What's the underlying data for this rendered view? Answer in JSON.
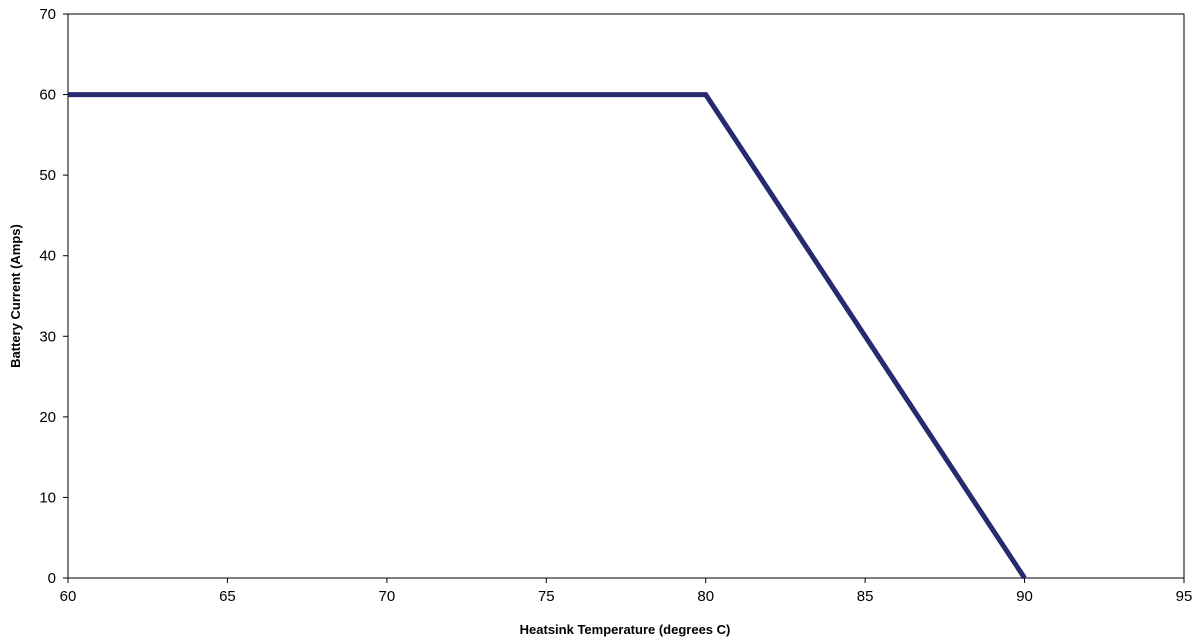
{
  "chart_data": {
    "type": "line",
    "title": "",
    "xlabel": "Heatsink Temperature (degrees C)",
    "ylabel": "Battery Current (Amps)",
    "xlim": [
      60,
      95
    ],
    "ylim": [
      0,
      70
    ],
    "xticks": [
      60,
      65,
      70,
      75,
      80,
      85,
      90,
      95
    ],
    "yticks": [
      0,
      10,
      20,
      30,
      40,
      50,
      60,
      70
    ],
    "grid": true,
    "legend": "none",
    "series": [
      {
        "color": "#262a6e",
        "points": [
          {
            "x": 60,
            "y": 60
          },
          {
            "x": 80,
            "y": 60
          },
          {
            "x": 90,
            "y": 0
          }
        ]
      }
    ]
  }
}
